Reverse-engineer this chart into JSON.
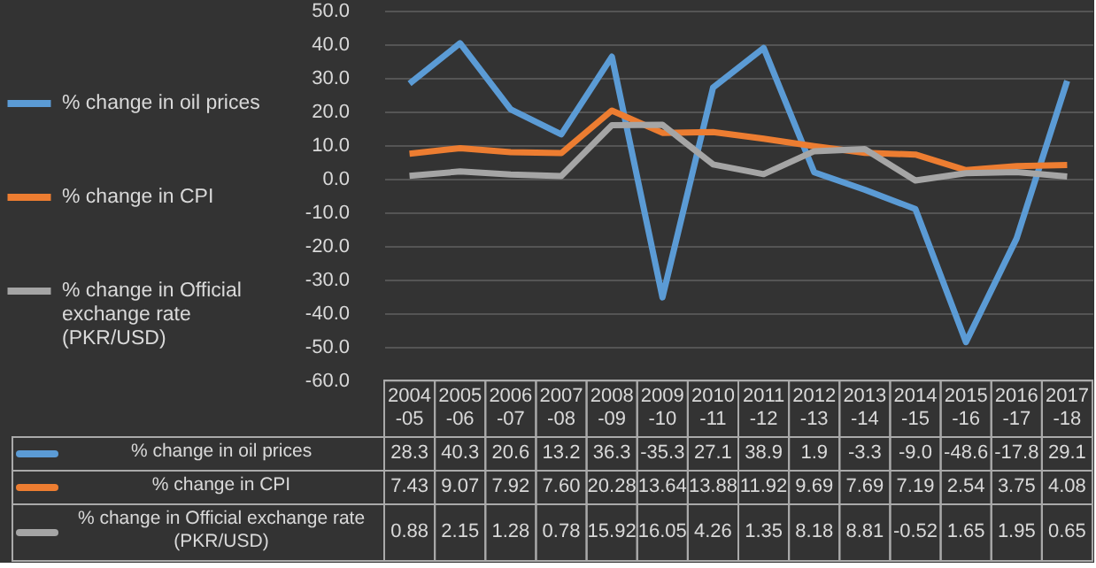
{
  "chart_data": {
    "type": "line",
    "categories": [
      "2004-05",
      "2005-06",
      "2006-07",
      "2007-08",
      "2008-09",
      "2009-10",
      "2010-11",
      "2011-12",
      "2012-13",
      "2013-14",
      "2014-15",
      "2015-16",
      "2016-17",
      "2017-18"
    ],
    "series": [
      {
        "name": "% change in oil prices",
        "color": "#5b9bd5",
        "values": [
          28.3,
          40.3,
          20.6,
          13.2,
          36.3,
          -35.3,
          27.1,
          38.9,
          1.9,
          -3.3,
          -9.0,
          -48.6,
          -17.8,
          29.1
        ],
        "value_labels": [
          "28.3",
          "40.3",
          "20.6",
          "13.2",
          "36.3",
          "-35.3",
          "27.1",
          "38.9",
          "1.9",
          "-3.3",
          "-9.0",
          "-48.6",
          "-17.8",
          "29.1"
        ]
      },
      {
        "name": "% change in CPI",
        "color": "#ed7d31",
        "values": [
          7.43,
          9.07,
          7.92,
          7.6,
          20.28,
          13.64,
          13.88,
          11.92,
          9.69,
          7.69,
          7.19,
          2.54,
          3.75,
          4.08
        ],
        "value_labels": [
          "7.43",
          "9.07",
          "7.92",
          "7.60",
          "20.28",
          "13.64",
          "13.88",
          "11.92",
          "9.69",
          "7.69",
          "7.19",
          "2.54",
          "3.75",
          "4.08"
        ]
      },
      {
        "name": "% change in Official exchange rate (PKR/USD)",
        "color": "#a5a5a5",
        "values": [
          0.88,
          2.15,
          1.28,
          0.78,
          15.92,
          16.05,
          4.26,
          1.35,
          8.18,
          8.81,
          -0.52,
          1.65,
          1.95,
          0.65
        ],
        "value_labels": [
          "0.88",
          "2.15",
          "1.28",
          "0.78",
          "15.92",
          "16.05",
          "4.26",
          "1.35",
          "8.18",
          "8.81",
          "-0.52",
          "1.65",
          "1.95",
          "0.65"
        ]
      }
    ],
    "ylim": [
      -60,
      50
    ],
    "yticks": [
      {
        "value": -60,
        "label": "-60.0"
      },
      {
        "value": -50,
        "label": "-50.0"
      },
      {
        "value": -40,
        "label": "-40.0"
      },
      {
        "value": -30,
        "label": "-30.0"
      },
      {
        "value": -20,
        "label": "-20.0"
      },
      {
        "value": -10,
        "label": "-10.0"
      },
      {
        "value": 0,
        "label": "0.0"
      },
      {
        "value": 10,
        "label": "10.0"
      },
      {
        "value": 20,
        "label": "20.0"
      },
      {
        "value": 30,
        "label": "30.0"
      },
      {
        "value": 40,
        "label": "40.0"
      },
      {
        "value": 50,
        "label": "50.0"
      }
    ],
    "grid": "y",
    "legend": "left",
    "line_style": "solid",
    "marker": "none"
  }
}
